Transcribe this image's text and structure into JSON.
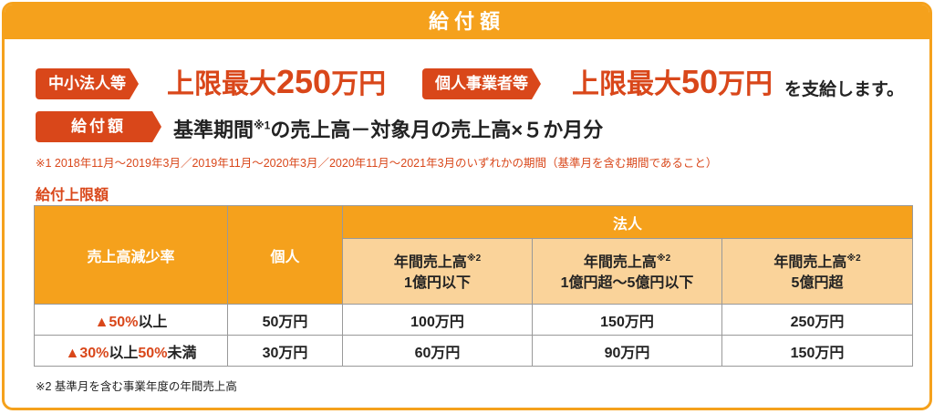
{
  "title": "給付額",
  "corp_tag": "中小法人等",
  "corp_limit_prefix": "上限最大",
  "corp_limit_num": "250",
  "corp_limit_unit": "万円",
  "indiv_tag": "個人事業者等",
  "indiv_limit_prefix": "上限最大",
  "indiv_limit_num": "50",
  "indiv_limit_unit": "万円",
  "suffix": "を支給します。",
  "amount_tag": "給付額",
  "formula_a": "基準期間",
  "formula_sup": "※1",
  "formula_b": "の売上高－対象月の売上高×５か月分",
  "note1": "※1  2018年11月～2019年3月／2019年11月～2020年3月／2020年11月～2021年3月のいずれかの期間（基準月を含む期間であること）",
  "subtitle": "給付上限額",
  "table": {
    "h_rate": "売上高減少率",
    "h_indiv": "個人",
    "h_corp": "法人",
    "h_c1a": "年間売上高",
    "h_c1b": "1億円以下",
    "h_c2a": "年間売上高",
    "h_c2b": "1億円超～5億円以下",
    "h_c3a": "年間売上高",
    "h_c3b": "5億円超",
    "sup": "※2",
    "rows": [
      {
        "r1": "▲50%",
        "r2": "以上",
        "r3": "",
        "r4": "",
        "v": [
          "50万円",
          "100万円",
          "150万円",
          "250万円"
        ]
      },
      {
        "r1": "▲30%",
        "r2": "以上",
        "r3": "50%",
        "r4": "未満",
        "v": [
          "30万円",
          "60万円",
          "90万円",
          "150万円"
        ]
      }
    ]
  },
  "note2": "※2 基準月を含む事業年度の年間売上高",
  "colors": {
    "orange": "#F5A11C",
    "red": "#D9471A",
    "light": "#FAD39A"
  }
}
